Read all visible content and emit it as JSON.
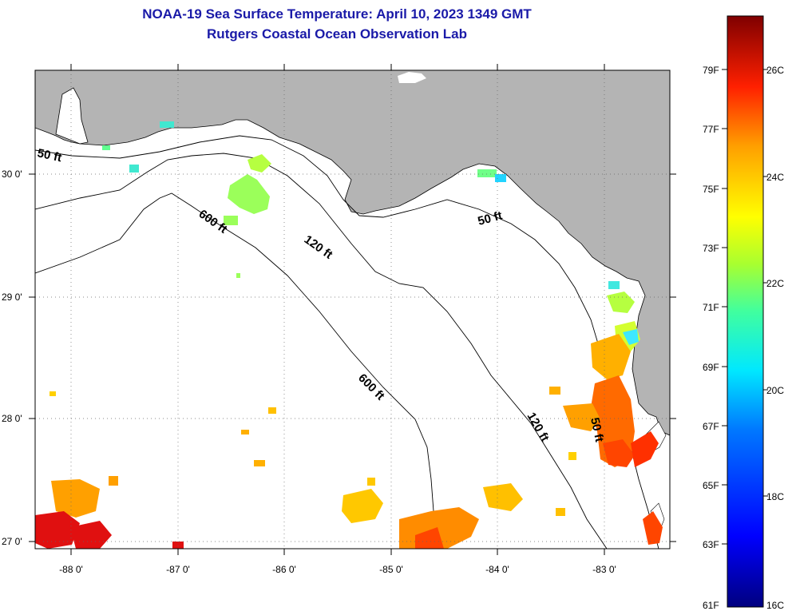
{
  "header": {
    "title": "NOAA-19 Sea Surface Temperature:  April 10, 2023 1349 GMT",
    "subtitle": "Rutgers Coastal Ocean Observation Lab"
  },
  "map": {
    "longitude_labels": [
      "-88 0'",
      "-87 0'",
      "-86 0'",
      "-85 0'",
      "-84 0'",
      "-83 0'"
    ],
    "latitude_labels": [
      "30 0'",
      "29 0'",
      "28 0'",
      "27 0'"
    ],
    "contour_labels": [
      "50 ft",
      "600 ft",
      "120 ft",
      "50 ft",
      "600 ft",
      "120 ft",
      "50 ft"
    ],
    "colors": {
      "land": "#b4b4b4",
      "ocean": "#ffffff",
      "grid": "#666666"
    }
  },
  "colorbar": {
    "fahrenheit_labels": [
      "79F",
      "77F",
      "75F",
      "73F",
      "71F",
      "69F",
      "67F",
      "65F",
      "63F",
      "61F"
    ],
    "celsius_labels": [
      "26C",
      "24C",
      "22C",
      "20C",
      "18C",
      "16C"
    ]
  }
}
